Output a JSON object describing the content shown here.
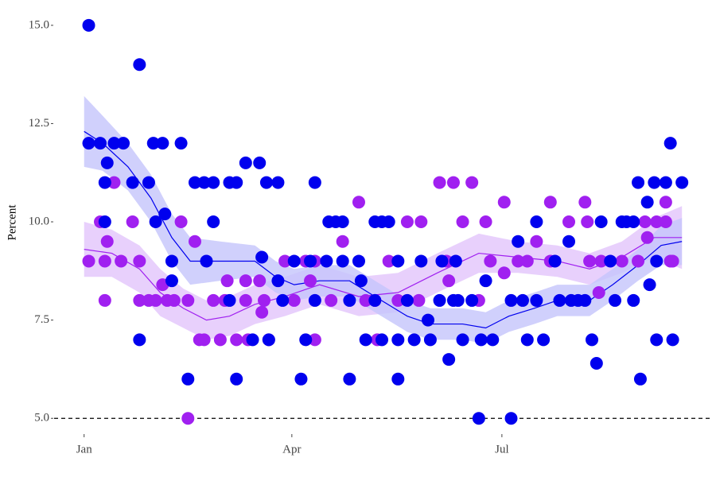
{
  "chart_data": {
    "type": "scatter",
    "ylabel": "Percent",
    "xlim": [
      -12,
      272
    ],
    "ylim": [
      4.6,
      15.3
    ],
    "xticks": [
      {
        "value": 1,
        "label": "Jan"
      },
      {
        "value": 91,
        "label": "Apr"
      },
      {
        "value": 182,
        "label": "Jul"
      }
    ],
    "yticks": [
      {
        "value": 5,
        "label": "5.0"
      },
      {
        "value": 7.5,
        "label": "7.5"
      },
      {
        "value": 10,
        "label": "10.0"
      },
      {
        "value": 12.5,
        "label": "12.5"
      },
      {
        "value": 15,
        "label": "15.0"
      }
    ],
    "hline": {
      "value": 5,
      "dashed": true,
      "color": "#000000"
    },
    "series": [
      {
        "color": "#a020f0",
        "band_color": "#e2c4fb",
        "x": [
          3,
          8,
          10,
          11,
          10,
          14,
          17,
          22,
          25,
          25,
          29,
          32,
          35,
          37,
          43,
          40,
          46,
          46,
          49,
          51,
          53,
          57,
          60,
          62,
          63,
          67,
          71,
          71,
          72,
          77,
          78,
          79,
          81,
          88,
          92,
          97,
          99,
          101,
          101,
          108,
          113,
          120,
          123,
          127,
          128,
          133,
          137,
          141,
          147,
          146,
          155,
          158,
          159,
          161,
          165,
          169,
          172,
          175,
          177,
          183,
          183,
          189,
          193,
          197,
          203,
          203,
          211,
          218,
          219,
          220,
          225,
          224,
          234,
          241,
          244,
          245,
          249,
          253,
          253,
          255,
          256
        ],
        "values": [
          9,
          10,
          9,
          9.5,
          8,
          11,
          9,
          10,
          9,
          8,
          8,
          8,
          8.4,
          8,
          10,
          8,
          8,
          5,
          9.5,
          7,
          7,
          8,
          7,
          8,
          8.5,
          7,
          8,
          8.5,
          7,
          8.5,
          7.7,
          8,
          7,
          9,
          8,
          9,
          8.5,
          7,
          9,
          8,
          9.5,
          10.5,
          8,
          8,
          7,
          9,
          8,
          10,
          10,
          8,
          11,
          9,
          8.5,
          11,
          10,
          11,
          8,
          10,
          9,
          10.5,
          8.7,
          9,
          9,
          9.5,
          10.5,
          9,
          10,
          10.5,
          10,
          9,
          9,
          8.2,
          9,
          9,
          10,
          9.6,
          10,
          10.5,
          10,
          9,
          9
        ],
        "trend": {
          "x": [
            1,
            13,
            25,
            34,
            44,
            54,
            64,
            75,
            88,
            103,
            120,
            137,
            154,
            172,
            189,
            206,
            220,
            234,
            248,
            260
          ],
          "values": [
            9.3,
            9.2,
            8.8,
            8.2,
            7.8,
            7.5,
            7.6,
            7.9,
            8.1,
            8.4,
            8.1,
            8.2,
            8.7,
            9.2,
            9.1,
            9,
            8.8,
            9.1,
            9.6,
            9.6
          ],
          "upper": [
            10,
            9.8,
            9.4,
            8.8,
            8.3,
            8,
            8.1,
            8.4,
            8.6,
            8.9,
            8.6,
            8.7,
            9.2,
            9.7,
            9.5,
            9.4,
            9.2,
            9.5,
            10.1,
            10.4
          ],
          "lower": [
            8.6,
            8.6,
            8.2,
            7.6,
            7.3,
            7,
            7.1,
            7.4,
            7.6,
            7.9,
            7.6,
            7.7,
            8.2,
            8.7,
            8.7,
            8.6,
            8.4,
            8.7,
            9.1,
            8.8
          ]
        }
      },
      {
        "color": "#0000ee",
        "band_color": "#c4c4fb",
        "x": [
          3,
          3,
          8,
          11,
          10,
          10,
          14,
          18,
          25,
          22,
          25,
          29,
          31,
          35,
          32,
          36,
          39,
          43,
          39,
          46,
          49,
          53,
          54,
          57,
          57,
          64,
          67,
          64,
          67,
          71,
          77,
          78,
          80,
          85,
          74,
          81,
          85,
          87,
          92,
          95,
          97,
          101,
          99,
          101,
          107,
          110,
          113,
          106,
          113,
          116,
          116,
          120,
          121,
          123,
          127,
          130,
          133,
          127,
          130,
          137,
          137,
          137,
          141,
          144,
          147,
          150,
          151,
          155,
          156,
          159,
          161,
          163,
          162,
          165,
          169,
          172,
          173,
          175,
          178,
          186,
          186,
          189,
          191,
          193,
          197,
          197,
          200,
          205,
          207,
          211,
          212,
          215,
          218,
          221,
          223,
          225,
          229,
          231,
          234,
          236,
          239,
          239,
          242,
          241,
          245,
          246,
          248,
          249,
          249,
          255,
          253,
          256,
          260
        ],
        "values": [
          15,
          12,
          12,
          11.5,
          11,
          10,
          12,
          12,
          14,
          11,
          7,
          11,
          12,
          12,
          10,
          10.2,
          8.5,
          12,
          9,
          6,
          11,
          11,
          9,
          10,
          11,
          11,
          11,
          8,
          6,
          11.5,
          11.5,
          9.1,
          11,
          11,
          7,
          7,
          8.5,
          8,
          9,
          6,
          7,
          11,
          9,
          8,
          10,
          10,
          10,
          9,
          9,
          8,
          6,
          9,
          8.5,
          7,
          10,
          10,
          10,
          8,
          7,
          9,
          7,
          6,
          8,
          7,
          9,
          7.5,
          7,
          8,
          9,
          6.5,
          8,
          8,
          9,
          7,
          8,
          5,
          7,
          8.5,
          7,
          5,
          8,
          9.5,
          8,
          7,
          10,
          8,
          7,
          9,
          8,
          9.5,
          8,
          8,
          8,
          7,
          6.4,
          10,
          9,
          8,
          10,
          10,
          10,
          8,
          6,
          11,
          10.5,
          8.4,
          11,
          9,
          7,
          12,
          11,
          7,
          11
        ],
        "trend": {
          "x": [
            1,
            9,
            20,
            30,
            39,
            47,
            60,
            75,
            84,
            92,
            103,
            116,
            127,
            141,
            151,
            165,
            175,
            185,
            196,
            206,
            220,
            230,
            241,
            251,
            260
          ],
          "values": [
            12.3,
            12,
            11.4,
            10.6,
            9.6,
            9,
            9,
            9,
            8.6,
            8.4,
            8.5,
            8.5,
            8.1,
            7.6,
            7.4,
            7.4,
            7.3,
            7.6,
            7.8,
            8,
            8,
            8.4,
            8.9,
            9.4,
            9.5
          ],
          "upper": [
            13.2,
            12.7,
            12,
            11.2,
            10.2,
            9.6,
            9.5,
            9.4,
            9,
            8.8,
            8.9,
            8.9,
            8.5,
            8,
            7.8,
            7.8,
            7.7,
            8,
            8.2,
            8.4,
            8.4,
            8.8,
            9.3,
            9.9,
            10.1
          ],
          "lower": [
            11.4,
            11.3,
            10.8,
            10,
            9,
            8.4,
            8.5,
            8.6,
            8.2,
            8,
            8.1,
            8.1,
            7.7,
            7.2,
            7,
            7,
            6.9,
            7.2,
            7.4,
            7.6,
            7.6,
            8,
            8.5,
            8.9,
            8.9
          ]
        }
      }
    ]
  }
}
